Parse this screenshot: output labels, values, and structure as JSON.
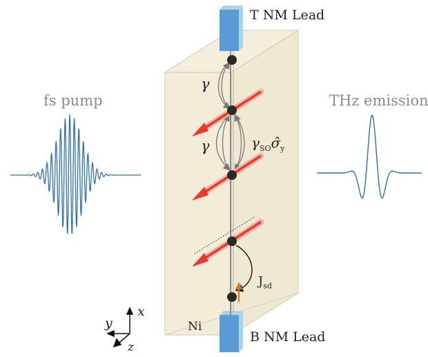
{
  "labels": {
    "top_lead": "T NM Lead",
    "bottom_lead": "B NM Lead",
    "pump": "fs pump",
    "emission": "THz emission",
    "material": "Ni",
    "gamma_top": "γ",
    "gamma_mid": "γ",
    "gamma_so_main": "γ",
    "gamma_so_sub": "SO",
    "gamma_so_op": "σ̂",
    "gamma_so_op_sub": "y",
    "jsd_main": "J",
    "jsd_sub": "sd",
    "axis_x": "x",
    "axis_y": "y",
    "axis_z": "z"
  },
  "colors": {
    "lead": "#5b9bd5",
    "lead_light": "#a9d4ef",
    "box_fill": "#f1ead7",
    "spin_arrow": "#e8392a",
    "pulse": "#2f6fa8",
    "site": "#2b2b26",
    "jsd_arrow": "#e07a22"
  }
}
